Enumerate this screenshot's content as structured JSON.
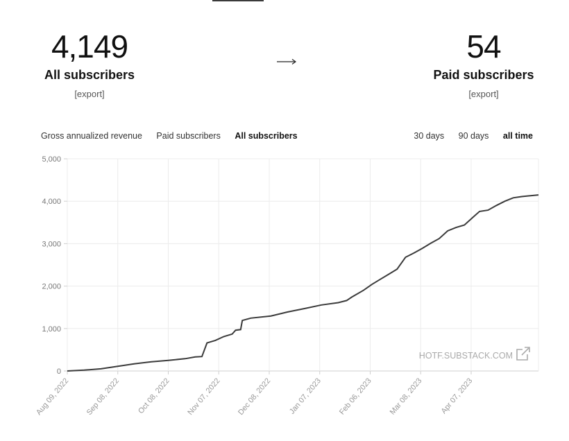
{
  "stats": {
    "all": {
      "number": "4,149",
      "label": "All subscribers",
      "export": "[export]"
    },
    "paid": {
      "number": "54",
      "label": "Paid subscribers",
      "export": "[export]"
    }
  },
  "metric_toggles": [
    {
      "label": "Gross annualized revenue",
      "active": false
    },
    {
      "label": "Paid subscribers",
      "active": false
    },
    {
      "label": "All subscribers",
      "active": true
    }
  ],
  "range_toggles": [
    {
      "label": "30 days",
      "active": false
    },
    {
      "label": "90 days",
      "active": false
    },
    {
      "label": "all time",
      "active": true
    }
  ],
  "watermark": "HOTF.SUBSTACK.COM",
  "colors": {
    "line": "#3a3a3a",
    "grid": "#ececec",
    "accent": "#1b1b1b"
  },
  "chart_data": {
    "type": "line",
    "title": "",
    "xlabel": "",
    "ylabel": "",
    "ylim": [
      0,
      5000
    ],
    "y_ticks": [
      "0",
      "1,000",
      "2,000",
      "3,000",
      "4,000",
      "5,000"
    ],
    "x_ticks": [
      "Aug 09, 2022",
      "Sep 08, 2022",
      "Oct 08, 2022",
      "Nov 07, 2022",
      "Dec 08, 2022",
      "Jan 07, 2023",
      "Feb 06, 2023",
      "Mar 08, 2023",
      "Apr 07, 2023"
    ],
    "x_range": [
      "2022-08-09",
      "2023-05-16"
    ],
    "grid": true,
    "series": [
      {
        "points": [
          [
            "2022-08-09",
            0
          ],
          [
            "2022-08-19",
            20
          ],
          [
            "2022-08-29",
            50
          ],
          [
            "2022-09-08",
            110
          ],
          [
            "2022-09-18",
            170
          ],
          [
            "2022-09-28",
            215
          ],
          [
            "2022-10-08",
            250
          ],
          [
            "2022-10-18",
            290
          ],
          [
            "2022-10-24",
            330
          ],
          [
            "2022-10-28",
            340
          ],
          [
            "2022-10-31",
            660
          ],
          [
            "2022-11-05",
            720
          ],
          [
            "2022-11-10",
            810
          ],
          [
            "2022-11-15",
            870
          ],
          [
            "2022-11-17",
            960
          ],
          [
            "2022-11-20",
            975
          ],
          [
            "2022-11-21",
            1190
          ],
          [
            "2022-11-26",
            1245
          ],
          [
            "2022-12-08",
            1295
          ],
          [
            "2022-12-18",
            1390
          ],
          [
            "2022-12-28",
            1470
          ],
          [
            "2023-01-07",
            1555
          ],
          [
            "2023-01-17",
            1610
          ],
          [
            "2023-01-22",
            1660
          ],
          [
            "2023-01-25",
            1740
          ],
          [
            "2023-02-01",
            1900
          ],
          [
            "2023-02-06",
            2040
          ],
          [
            "2023-02-11",
            2160
          ],
          [
            "2023-02-16",
            2280
          ],
          [
            "2023-02-21",
            2400
          ],
          [
            "2023-02-26",
            2680
          ],
          [
            "2023-03-03",
            2780
          ],
          [
            "2023-03-08",
            2890
          ],
          [
            "2023-03-13",
            3010
          ],
          [
            "2023-03-18",
            3120
          ],
          [
            "2023-03-23",
            3300
          ],
          [
            "2023-03-28",
            3380
          ],
          [
            "2023-04-02",
            3440
          ],
          [
            "2023-04-07",
            3620
          ],
          [
            "2023-04-11",
            3760
          ],
          [
            "2023-04-16",
            3790
          ],
          [
            "2023-04-21",
            3900
          ],
          [
            "2023-04-26",
            4000
          ],
          [
            "2023-05-01",
            4080
          ],
          [
            "2023-05-06",
            4110
          ],
          [
            "2023-05-16",
            4149
          ]
        ]
      }
    ]
  }
}
